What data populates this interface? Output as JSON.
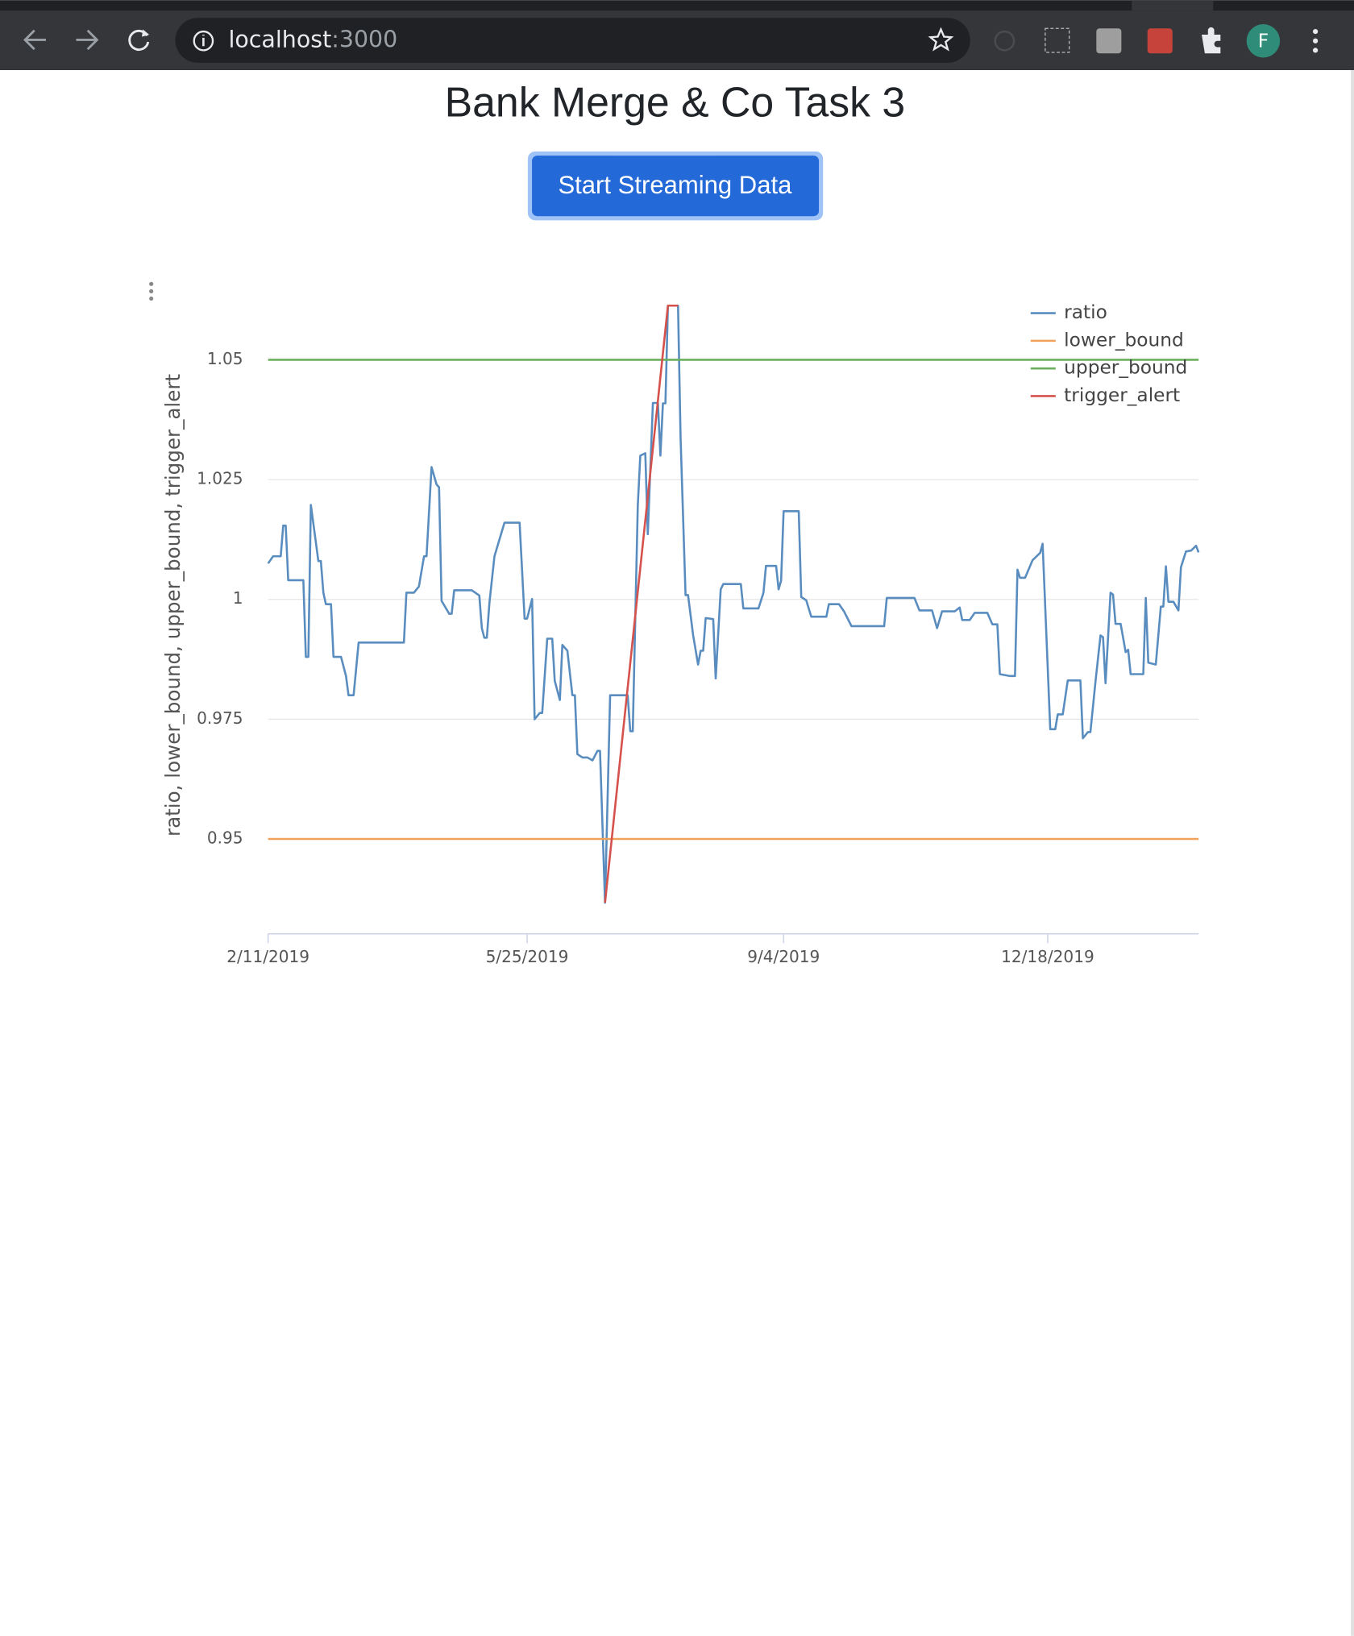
{
  "browser": {
    "url_host": "localhost",
    "url_port": ":3000",
    "profile": "F"
  },
  "page": {
    "title": "Bank Merge & Co Task 3",
    "button": "Start Streaming Data"
  },
  "chart_data": {
    "type": "line",
    "ylabel": "ratio, lower_bound, upper_bound, trigger_alert",
    "xlim": [
      "2019-02-11",
      "2020-02-16"
    ],
    "xticks": [
      {
        "value": "2019-02-11",
        "label": "2/11/2019"
      },
      {
        "value": "2019-05-25",
        "label": "5/25/2019"
      },
      {
        "value": "2019-09-04",
        "label": "9/4/2019"
      },
      {
        "value": "2019-12-18",
        "label": "12/18/2019"
      }
    ],
    "ylim": [
      0.93,
      1.063
    ],
    "yticks": [
      0.95,
      0.975,
      1,
      1.025,
      1.05
    ],
    "grid": true,
    "legend": "top-right",
    "series": [
      {
        "name": "ratio",
        "color": "#5a8dbf",
        "x": [
          "2019-02-11",
          "2019-02-13",
          "2019-02-16",
          "2019-02-17",
          "2019-02-18",
          "2019-02-19",
          "2019-02-25",
          "2019-02-26",
          "2019-02-27",
          "2019-02-28",
          "2019-03-03",
          "2019-03-04",
          "2019-03-05",
          "2019-03-06",
          "2019-03-08",
          "2019-03-09",
          "2019-03-12",
          "2019-03-14",
          "2019-03-15",
          "2019-03-17",
          "2019-03-19",
          "2019-04-06",
          "2019-04-07",
          "2019-04-10",
          "2019-04-12",
          "2019-04-14",
          "2019-04-15",
          "2019-04-17",
          "2019-04-19",
          "2019-04-20",
          "2019-04-21",
          "2019-04-24",
          "2019-04-25",
          "2019-04-26",
          "2019-05-03",
          "2019-05-06",
          "2019-05-07",
          "2019-05-08",
          "2019-05-09",
          "2019-05-10",
          "2019-05-12",
          "2019-05-16",
          "2019-05-22",
          "2019-05-24",
          "2019-05-25",
          "2019-05-27",
          "2019-05-28",
          "2019-05-30",
          "2019-05-31",
          "2019-06-02",
          "2019-06-04",
          "2019-06-05",
          "2019-06-07",
          "2019-06-08",
          "2019-06-10",
          "2019-06-12",
          "2019-06-13",
          "2019-06-14",
          "2019-06-16",
          "2019-06-18",
          "2019-06-20",
          "2019-06-22",
          "2019-06-23",
          "2019-06-25",
          "2019-06-27",
          "2019-07-04",
          "2019-07-05",
          "2019-07-06",
          "2019-07-08",
          "2019-07-09",
          "2019-07-11",
          "2019-07-12",
          "2019-07-14",
          "2019-07-16",
          "2019-07-17",
          "2019-07-18",
          "2019-07-19",
          "2019-07-20",
          "2019-07-24",
          "2019-07-25",
          "2019-07-27",
          "2019-07-28",
          "2019-07-30",
          "2019-08-01",
          "2019-08-02",
          "2019-08-03",
          "2019-08-04",
          "2019-08-07",
          "2019-08-08",
          "2019-08-10",
          "2019-08-11",
          "2019-08-18",
          "2019-08-19",
          "2019-08-25",
          "2019-08-27",
          "2019-08-28",
          "2019-09-01",
          "2019-09-02",
          "2019-09-03",
          "2019-09-04",
          "2019-09-10",
          "2019-09-11",
          "2019-09-13",
          "2019-09-15",
          "2019-09-21",
          "2019-09-22",
          "2019-09-26",
          "2019-09-28",
          "2019-10-01",
          "2019-10-14",
          "2019-10-15",
          "2019-10-26",
          "2019-10-28",
          "2019-11-02",
          "2019-11-04",
          "2019-11-06",
          "2019-11-11",
          "2019-11-13",
          "2019-11-14",
          "2019-11-17",
          "2019-11-19",
          "2019-11-24",
          "2019-11-26",
          "2019-11-28",
          "2019-11-29",
          "2019-12-03",
          "2019-12-05",
          "2019-12-06",
          "2019-12-07",
          "2019-12-09",
          "2019-12-12",
          "2019-12-15",
          "2019-12-16",
          "2019-12-18",
          "2019-12-19",
          "2019-12-21",
          "2019-12-22",
          "2019-12-24",
          "2019-12-26",
          "2019-12-31",
          "2020-01-01",
          "2020-01-03",
          "2020-01-04",
          "2020-01-06",
          "2020-01-08",
          "2020-01-09",
          "2020-01-10",
          "2020-01-12",
          "2020-01-13",
          "2020-01-14",
          "2020-01-16",
          "2020-01-18",
          "2020-01-19",
          "2020-01-20",
          "2020-01-25",
          "2020-01-26",
          "2020-01-27",
          "2020-01-30",
          "2020-02-01",
          "2020-02-02",
          "2020-02-03",
          "2020-02-04",
          "2020-02-06",
          "2020-02-08",
          "2020-02-09",
          "2020-02-11",
          "2020-02-13",
          "2020-02-15",
          "2020-02-16"
        ],
        "values": [
          1.0075,
          1.009,
          1.009,
          1.0154,
          1.0154,
          1.004,
          1.004,
          0.988,
          0.988,
          1.0197,
          1.008,
          1.008,
          1.0014,
          0.999,
          0.999,
          0.988,
          0.988,
          0.984,
          0.98,
          0.98,
          0.991,
          0.991,
          1.0014,
          1.0014,
          1.0027,
          1.009,
          1.009,
          1.0276,
          1.024,
          1.0234,
          0.9997,
          0.997,
          0.997,
          1.0019,
          1.0019,
          1.0008,
          0.994,
          0.992,
          0.992,
          0.9993,
          1.009,
          1.016,
          1.016,
          0.996,
          0.996,
          1.0001,
          0.975,
          0.9763,
          0.9763,
          0.9918,
          0.9918,
          0.983,
          0.979,
          0.9905,
          0.9893,
          0.98,
          0.98,
          0.9677,
          0.967,
          0.967,
          0.9664,
          0.9684,
          0.9684,
          0.9367,
          0.98,
          0.98,
          0.9725,
          0.9725,
          1.0195,
          1.03,
          1.0305,
          1.0136,
          1.041,
          1.041,
          1.03,
          1.0409,
          1.0409,
          1.0613,
          1.0613,
          1.034,
          1.0009,
          1.0009,
          0.9926,
          0.9864,
          0.9893,
          0.9893,
          0.9961,
          0.9959,
          0.9835,
          1.0021,
          1.0032,
          1.0032,
          0.9981,
          0.9981,
          1.0014,
          1.007,
          1.007,
          1.0021,
          1.0039,
          1.0184,
          1.0184,
          1.0005,
          0.9998,
          0.9964,
          0.9964,
          0.999,
          0.999,
          0.9975,
          0.9944,
          0.9944,
          1.0003,
          1.0003,
          0.9977,
          0.9977,
          0.994,
          0.9975,
          0.9975,
          0.9983,
          0.9957,
          0.9957,
          0.9972,
          0.9972,
          0.9948,
          0.9948,
          0.9844,
          0.984,
          0.984,
          1.0062,
          1.0045,
          1.0045,
          1.0082,
          1.0097,
          1.0116,
          0.9857,
          0.9729,
          0.9729,
          0.976,
          0.976,
          0.9831,
          0.9831,
          0.971,
          0.9723,
          0.9723,
          0.9829,
          0.9925,
          0.9921,
          0.9825,
          1.0014,
          1.001,
          0.9949,
          0.9949,
          0.989,
          0.9895,
          0.9844,
          0.9844,
          1.0003,
          0.9868,
          0.9864,
          0.9985,
          0.9985,
          1.0069,
          0.9995,
          0.9995,
          0.9977,
          1.0067,
          1.01,
          1.0102,
          1.0112,
          1.0098
        ]
      },
      {
        "name": "lower_bound",
        "color": "#f2a15a",
        "x": [
          "2019-02-11",
          "2020-02-16"
        ],
        "values": [
          0.95,
          0.95
        ]
      },
      {
        "name": "upper_bound",
        "color": "#6bb05c",
        "x": [
          "2019-02-11",
          "2020-02-16"
        ],
        "values": [
          1.05,
          1.05
        ]
      },
      {
        "name": "trigger_alert",
        "color": "#d5524c",
        "x": [
          "2019-06-25",
          "2019-07-20",
          "2019-07-24"
        ],
        "values": [
          0.9367,
          1.0613,
          1.0613
        ]
      }
    ]
  }
}
